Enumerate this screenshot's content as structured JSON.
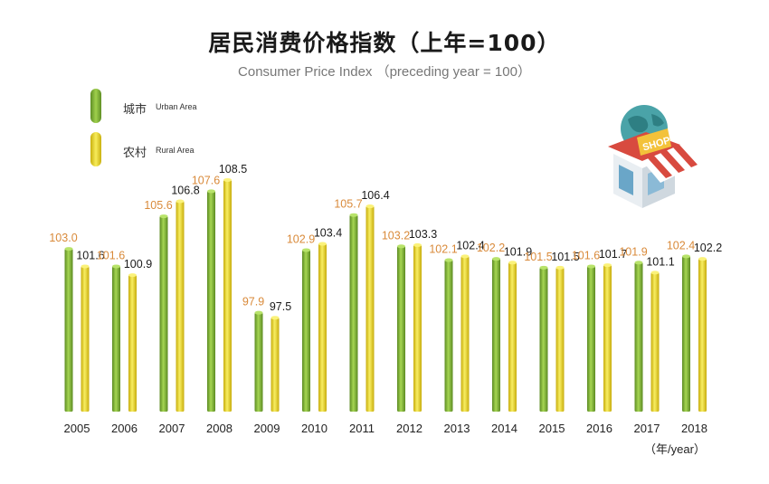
{
  "chart_data": {
    "type": "bar",
    "title": "居民消费价格指数（上年=100）",
    "subtitle": "Consumer Price Index （preceding year = 100）",
    "unit_label": "（年/year）",
    "categories": [
      "2005",
      "2006",
      "2007",
      "2008",
      "2009",
      "2010",
      "2011",
      "2012",
      "2013",
      "2014",
      "2015",
      "2016",
      "2017",
      "2018"
    ],
    "series": [
      {
        "name": "城市 Urban Area",
        "name_cn": "城市",
        "name_en": "Urban Area",
        "color": "#7fb13a",
        "values": [
          103.0,
          101.6,
          105.6,
          107.6,
          97.9,
          102.9,
          105.7,
          103.2,
          102.1,
          102.2,
          101.5,
          101.6,
          101.9,
          102.4
        ]
      },
      {
        "name": "农村 Rural Area",
        "name_cn": "农村",
        "name_en": "Rural Area",
        "color": "#e8d21c",
        "values": [
          101.6,
          100.9,
          106.8,
          108.5,
          97.5,
          103.4,
          106.4,
          103.3,
          102.4,
          101.9,
          101.5,
          101.7,
          101.1,
          102.2
        ]
      }
    ],
    "label_colors": [
      "#d98a3a",
      "#1a1a1a"
    ],
    "legend_position": "top-left",
    "grid": false
  }
}
